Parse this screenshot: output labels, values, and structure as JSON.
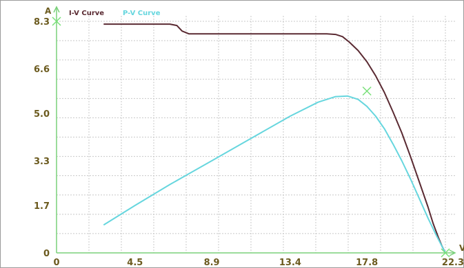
{
  "chart_data": {
    "type": "line",
    "xlabel": "V",
    "ylabel": "A",
    "xlim": [
      0,
      22.3
    ],
    "ylim": [
      0,
      8.3
    ],
    "x_ticks": [
      "0",
      "4.5",
      "8.9",
      "13.4",
      "17.8",
      "22.3"
    ],
    "y_ticks": [
      "0",
      "1.7",
      "3.3",
      "5.0",
      "6.6",
      "8.3"
    ],
    "grid": true,
    "legend_position": "top-left",
    "series": [
      {
        "name": "I-V Curve",
        "color": "#5a2a32",
        "x": [
          2.7,
          5.5,
          6.5,
          6.9,
          7.2,
          7.6,
          10.0,
          14.0,
          15.5,
          16.0,
          16.4,
          16.8,
          17.3,
          17.8,
          18.3,
          18.8,
          19.3,
          19.8,
          20.3,
          20.8,
          21.3,
          21.6,
          21.9,
          22.1,
          22.3
        ],
        "y": [
          8.2,
          8.2,
          8.2,
          8.15,
          7.95,
          7.85,
          7.85,
          7.85,
          7.85,
          7.83,
          7.75,
          7.55,
          7.25,
          6.85,
          6.35,
          5.75,
          5.05,
          4.3,
          3.45,
          2.55,
          1.65,
          1.05,
          0.55,
          0.25,
          0.0
        ]
      },
      {
        "name": "P-V Curve",
        "color": "#66d6de",
        "x": [
          2.7,
          4.5,
          6.5,
          8.9,
          11.0,
          13.4,
          15.0,
          16.0,
          16.7,
          17.3,
          17.8,
          18.3,
          18.8,
          19.3,
          19.8,
          20.3,
          20.8,
          21.3,
          21.8,
          22.3
        ],
        "y": [
          1.0,
          1.7,
          2.45,
          3.3,
          4.05,
          4.9,
          5.4,
          5.6,
          5.62,
          5.5,
          5.25,
          4.9,
          4.45,
          3.9,
          3.3,
          2.65,
          1.95,
          1.25,
          0.6,
          0.0
        ]
      }
    ],
    "markers": [
      {
        "x": 0,
        "y": 8.3,
        "color": "#79e079"
      },
      {
        "x": 17.8,
        "y": 5.8,
        "color": "#79e079"
      },
      {
        "x": 22.3,
        "y": 0,
        "color": "#79e079"
      }
    ]
  }
}
